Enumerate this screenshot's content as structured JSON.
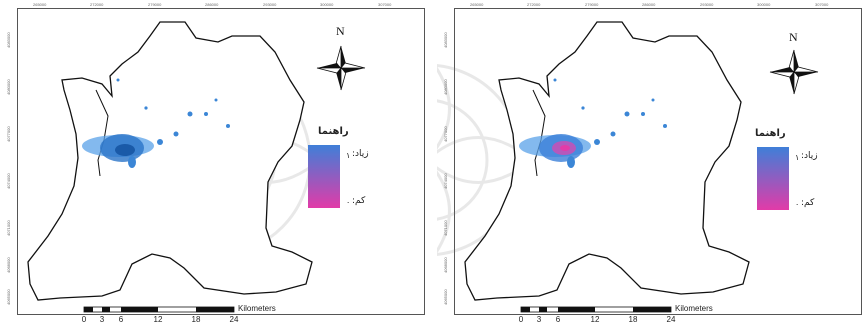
{
  "maps": [
    {
      "id": "left",
      "top_ticks": [
        "265000",
        "272000",
        "279000",
        "286000",
        "293000",
        "300000",
        "307000"
      ],
      "left_ticks": [
        "4083000",
        "4080000",
        "4077000",
        "4074000",
        "4071000",
        "4068000",
        "4065000"
      ],
      "north_label": "N",
      "legend": {
        "title": "راهنما",
        "high_label": "زیاد:",
        "high_value": "۱",
        "low_label": "کم:",
        "low_value": "۰",
        "gradient_top": "#3f7fd8",
        "gradient_bottom": "#e23ba8"
      },
      "scale_bar": {
        "labels": [
          "0",
          "3",
          "6",
          "12",
          "18",
          "24"
        ],
        "unit": "Kilometers"
      }
    },
    {
      "id": "right",
      "top_ticks": [
        "265000",
        "272000",
        "279000",
        "286000",
        "293000",
        "300000",
        "307000"
      ],
      "left_ticks": [
        "4083000",
        "4080000",
        "4077000",
        "4074000",
        "4071000",
        "4068000",
        "4065000"
      ],
      "north_label": "N",
      "legend": {
        "title": "راهنما",
        "high_label": "زیاد:",
        "high_value": "۱",
        "low_label": "کم:",
        "low_value": "۰",
        "gradient_top": "#3f7fd8",
        "gradient_bottom": "#e23ba8"
      },
      "scale_bar": {
        "labels": [
          "0",
          "3",
          "6",
          "12",
          "18",
          "24"
        ],
        "unit": "Kilometers"
      }
    }
  ]
}
